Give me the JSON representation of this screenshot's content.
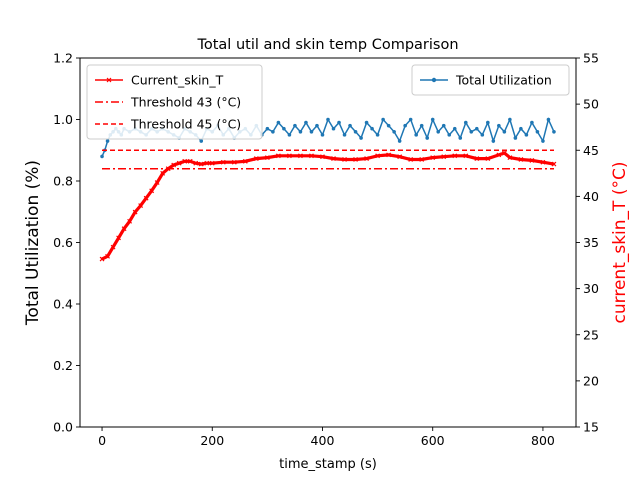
{
  "chart_data": {
    "type": "line",
    "title": "Total util and skin temp Comparison",
    "xlabel": "time_stamp (s)",
    "ylabel": "Total Utilization (%)",
    "y2label": "current_skin_T (°C)",
    "xlim": [
      -40,
      860
    ],
    "ylim": [
      0.0,
      1.2
    ],
    "y2lim": [
      15,
      55
    ],
    "x_ticks": [
      0,
      200,
      400,
      600,
      800
    ],
    "y_ticks": [
      0.0,
      0.2,
      0.4,
      0.6,
      0.8,
      1.0,
      1.2
    ],
    "y2_ticks": [
      15,
      20,
      25,
      30,
      35,
      40,
      45,
      50,
      55
    ],
    "x_tick_labels": [
      "0",
      "200",
      "400",
      "600",
      "800"
    ],
    "y_tick_labels": [
      "0.0",
      "0.2",
      "0.4",
      "0.6",
      "0.8",
      "1.0",
      "1.2"
    ],
    "y2_tick_labels": [
      "15",
      "20",
      "25",
      "30",
      "35",
      "40",
      "45",
      "50",
      "55"
    ],
    "grid": false,
    "colors": {
      "utilization": "#1f77b4",
      "skin_temp": "#ff0000",
      "y2_label": "#ff0000"
    },
    "series": [
      {
        "name": "Current_skin_T",
        "axis": "right",
        "marker": "x",
        "x": [
          0,
          10,
          20,
          30,
          40,
          50,
          60,
          70,
          80,
          90,
          100,
          110,
          120,
          130,
          140,
          150,
          160,
          170,
          180,
          190,
          200,
          220,
          240,
          260,
          280,
          300,
          320,
          340,
          360,
          380,
          400,
          420,
          440,
          460,
          480,
          500,
          520,
          540,
          560,
          580,
          600,
          620,
          640,
          660,
          680,
          700,
          720,
          730,
          740,
          760,
          780,
          800,
          820
        ],
        "values": [
          33.2,
          33.5,
          34.5,
          35.5,
          36.5,
          37.3,
          38.3,
          39.0,
          39.8,
          40.6,
          41.5,
          42.5,
          43.0,
          43.4,
          43.6,
          43.8,
          43.8,
          43.6,
          43.5,
          43.6,
          43.6,
          43.7,
          43.7,
          43.8,
          44.1,
          44.2,
          44.4,
          44.4,
          44.4,
          44.4,
          44.3,
          44.1,
          44.0,
          44.0,
          44.1,
          44.4,
          44.5,
          44.3,
          44.0,
          44.0,
          44.2,
          44.3,
          44.4,
          44.4,
          44.1,
          44.1,
          44.5,
          44.7,
          44.2,
          44.0,
          43.9,
          43.7,
          43.5
        ]
      },
      {
        "name": "Threshold 43 (°C)",
        "axis": "right",
        "style": "dashdot",
        "x": [
          0,
          820
        ],
        "values": [
          43,
          43
        ]
      },
      {
        "name": "Threshold 45 (°C)",
        "axis": "right",
        "style": "dashed",
        "x": [
          0,
          820
        ],
        "values": [
          45,
          45
        ]
      },
      {
        "name": "Total Utilization",
        "axis": "left",
        "marker": "o",
        "x": [
          0,
          5,
          10,
          15,
          20,
          25,
          30,
          35,
          40,
          50,
          60,
          70,
          80,
          90,
          100,
          110,
          120,
          130,
          140,
          150,
          160,
          170,
          180,
          190,
          200,
          210,
          220,
          230,
          240,
          250,
          260,
          270,
          280,
          290,
          300,
          310,
          320,
          330,
          340,
          350,
          360,
          370,
          380,
          390,
          400,
          410,
          420,
          430,
          440,
          450,
          460,
          470,
          480,
          490,
          500,
          510,
          520,
          530,
          540,
          550,
          560,
          570,
          580,
          590,
          600,
          610,
          620,
          630,
          640,
          650,
          660,
          670,
          680,
          690,
          700,
          710,
          720,
          730,
          740,
          750,
          760,
          770,
          780,
          790,
          800,
          810,
          820
        ],
        "values": [
          0.88,
          0.9,
          0.93,
          0.95,
          0.96,
          0.97,
          0.96,
          0.95,
          0.97,
          0.96,
          0.97,
          0.96,
          0.95,
          0.97,
          0.96,
          0.97,
          0.96,
          0.95,
          0.94,
          0.97,
          0.96,
          0.95,
          0.93,
          0.97,
          0.96,
          0.98,
          0.95,
          0.97,
          0.94,
          0.96,
          0.97,
          0.95,
          0.98,
          0.95,
          0.97,
          0.96,
          0.99,
          0.97,
          0.95,
          0.98,
          0.96,
          0.99,
          0.96,
          0.98,
          0.95,
          1.0,
          0.97,
          0.99,
          0.95,
          0.98,
          0.96,
          0.94,
          0.99,
          0.97,
          0.95,
          1.0,
          0.98,
          0.96,
          0.93,
          0.98,
          1.0,
          0.95,
          0.98,
          0.94,
          1.0,
          0.96,
          0.98,
          0.95,
          0.97,
          0.94,
          0.99,
          0.96,
          0.97,
          0.95,
          0.99,
          0.93,
          0.98,
          0.96,
          1.0,
          0.94,
          0.97,
          0.95,
          0.99,
          0.96,
          0.93,
          1.0,
          0.96
        ]
      }
    ],
    "legend_left": {
      "placement": "upper-left",
      "entries": [
        "Current_skin_T",
        "Threshold 43 (°C)",
        "Threshold 45 (°C)"
      ]
    },
    "legend_right": {
      "placement": "upper-right",
      "entries": [
        "Total Utilization"
      ]
    }
  }
}
